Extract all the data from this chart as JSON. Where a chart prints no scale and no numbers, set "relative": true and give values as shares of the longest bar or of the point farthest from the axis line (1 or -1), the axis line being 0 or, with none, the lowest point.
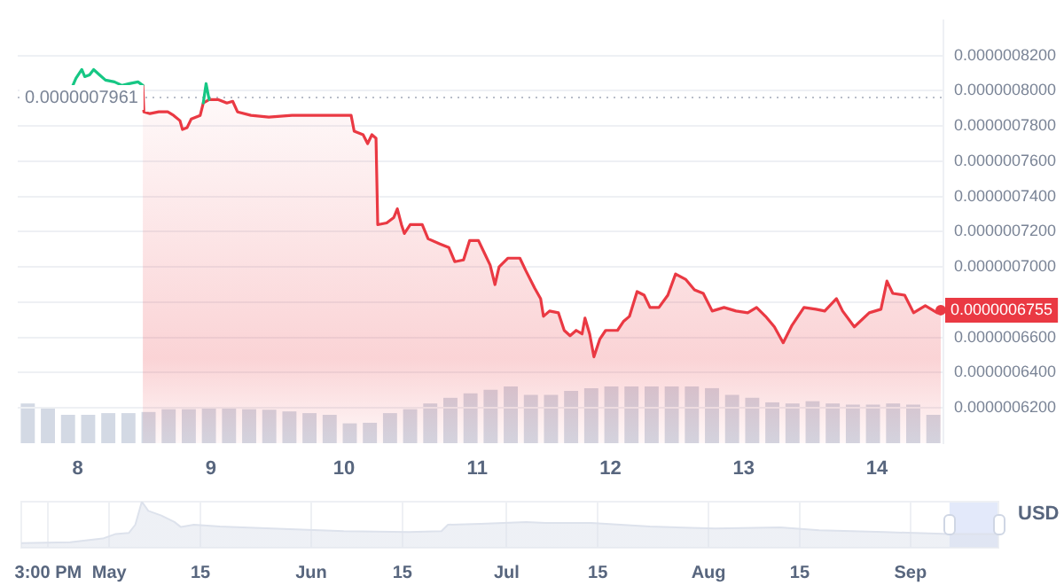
{
  "chart_data": [
    {
      "type": "line",
      "ylabel": "USD",
      "grid": "y",
      "marker": "none",
      "xlim": [
        7.55,
        14.5
      ],
      "xticks": [
        8,
        9,
        10,
        11,
        12,
        13,
        14
      ],
      "ylim": [
        6e-07,
        8.4e-07
      ],
      "yticks": [
        {
          "value": 8.2e-07,
          "label": "0.0000008200"
        },
        {
          "value": 8e-07,
          "label": "0.0000008000"
        },
        {
          "value": 7.8e-07,
          "label": "0.0000007800"
        },
        {
          "value": 7.6e-07,
          "label": "0.0000007600"
        },
        {
          "value": 7.4e-07,
          "label": "0.0000007400"
        },
        {
          "value": 7.2e-07,
          "label": "0.0000007200"
        },
        {
          "value": 7e-07,
          "label": "0.0000007000"
        },
        {
          "value": 6.8e-07,
          "label": null
        },
        {
          "value": 6.6e-07,
          "label": "0.0000006600"
        },
        {
          "value": 6.4e-07,
          "label": "0.0000006400"
        },
        {
          "value": 6.2e-07,
          "label": "0.0000006200"
        }
      ],
      "ref_lines": [
        {
          "axis": "y",
          "value": 7.961e-07,
          "label": "0.0000007961",
          "line_style": "dotted",
          "color": "#b8bec9"
        }
      ],
      "annotations": [
        {
          "text": "0.0000006755",
          "x": 14.48,
          "y": 6.755e-07
        }
      ],
      "series": [
        {
          "color": "#16c784",
          "x": [
            7.964,
            7.987,
            8.031,
            8.053,
            8.089,
            8.12,
            8.164,
            8.209,
            8.276,
            8.333,
            8.387,
            8.453,
            8.489,
            8.7,
            8.943,
            8.964,
            8.987
          ],
          "values": [
            8.03e-07,
            8.07e-07,
            8.12e-07,
            8.08e-07,
            8.09e-07,
            8.12e-07,
            8.09e-07,
            8.06e-07,
            8.05e-07,
            8.03e-07,
            8.04e-07,
            8.05e-07,
            8.03e-07,
            null,
            7.93e-07,
            8.04e-07,
            7.95e-07
          ]
        },
        {
          "type": "area",
          "color": "#ea3943",
          "x": [
            8.489,
            8.497,
            8.543,
            8.609,
            8.676,
            8.72,
            8.768,
            8.787,
            8.821,
            8.853,
            8.92,
            8.943,
            8.987,
            9.053,
            9.12,
            9.164,
            9.2,
            9.301,
            9.435,
            9.609,
            9.787,
            10.053,
            10.076,
            10.143,
            10.177,
            10.209,
            10.24,
            10.253,
            10.32,
            10.373,
            10.4,
            10.431,
            10.453,
            10.497,
            10.587,
            10.631,
            10.72,
            10.787,
            10.831,
            10.897,
            10.943,
            11.009,
            11.053,
            11.097,
            11.133,
            11.164,
            11.231,
            11.32,
            11.364,
            11.431,
            11.476,
            11.497,
            11.543,
            11.609,
            11.653,
            11.697,
            11.743,
            11.787,
            11.809,
            11.844,
            11.876,
            11.92,
            11.964,
            12.053,
            12.097,
            12.143,
            12.2,
            12.253,
            12.297,
            12.364,
            12.431,
            12.489,
            12.564,
            12.631,
            12.697,
            12.764,
            12.853,
            12.943,
            13.031,
            13.097,
            13.164,
            13.231,
            13.297,
            13.364,
            13.453,
            13.543,
            13.609,
            13.697,
            13.743,
            13.831,
            13.943,
            14.031,
            14.076,
            14.12,
            14.209,
            14.276,
            14.364,
            14.453,
            14.48
          ],
          "values": [
            8.03e-07,
            7.88e-07,
            7.87e-07,
            7.88e-07,
            7.88e-07,
            7.86e-07,
            7.83e-07,
            7.78e-07,
            7.79e-07,
            7.84e-07,
            7.86e-07,
            7.93e-07,
            7.95e-07,
            7.95e-07,
            7.93e-07,
            7.94e-07,
            7.88e-07,
            7.86e-07,
            7.85e-07,
            7.86e-07,
            7.86e-07,
            7.86e-07,
            7.77e-07,
            7.75e-07,
            7.7e-07,
            7.75e-07,
            7.73e-07,
            7.24e-07,
            7.25e-07,
            7.28e-07,
            7.33e-07,
            7.24e-07,
            7.19e-07,
            7.24e-07,
            7.24e-07,
            7.16e-07,
            7.13e-07,
            7.11e-07,
            7.03e-07,
            7.04e-07,
            7.15e-07,
            7.15e-07,
            7.08e-07,
            7.01e-07,
            6.9e-07,
            7e-07,
            7.05e-07,
            7.05e-07,
            6.98e-07,
            6.88e-07,
            6.82e-07,
            6.72e-07,
            6.75e-07,
            6.74e-07,
            6.64e-07,
            6.61e-07,
            6.64e-07,
            6.62e-07,
            6.71e-07,
            6.62e-07,
            6.49e-07,
            6.59e-07,
            6.64e-07,
            6.64e-07,
            6.69e-07,
            6.72e-07,
            6.86e-07,
            6.84e-07,
            6.77e-07,
            6.77e-07,
            6.84e-07,
            6.96e-07,
            6.93e-07,
            6.87e-07,
            6.85e-07,
            6.75e-07,
            6.77e-07,
            6.75e-07,
            6.74e-07,
            6.77e-07,
            6.72e-07,
            6.66e-07,
            6.57e-07,
            6.67e-07,
            6.77e-07,
            6.76e-07,
            6.75e-07,
            6.82e-07,
            6.75e-07,
            6.66e-07,
            6.74e-07,
            6.76e-07,
            6.92e-07,
            6.85e-07,
            6.84e-07,
            6.74e-07,
            6.78e-07,
            6.74e-07,
            6.755e-07
          ]
        }
      ]
    },
    {
      "type": "bar",
      "relative": true,
      "tick_labels": false,
      "color": "#d3d9e4",
      "categories": [
        null,
        null,
        null,
        null,
        null,
        null,
        null,
        null,
        null,
        null,
        null,
        null,
        null,
        null,
        null,
        null,
        null,
        null,
        null,
        null,
        null,
        null,
        null,
        null,
        null,
        null,
        null,
        null,
        null,
        null,
        null,
        null,
        null,
        null,
        null,
        null,
        null,
        null,
        null,
        null,
        null,
        null,
        null,
        null,
        null,
        null
      ],
      "values": [
        0.7,
        0.64,
        0.5,
        0.5,
        0.53,
        0.53,
        0.55,
        0.6,
        0.6,
        0.62,
        0.62,
        0.6,
        0.59,
        0.56,
        0.53,
        0.5,
        0.35,
        0.36,
        0.53,
        0.6,
        0.7,
        0.8,
        0.88,
        0.94,
        1,
        0.85,
        0.85,
        0.92,
        0.97,
        1,
        1,
        1,
        1,
        1,
        0.97,
        0.85,
        0.8,
        0.72,
        0.7,
        0.74,
        0.7,
        0.68,
        0.68,
        0.7,
        0.68,
        0.5
      ]
    },
    {
      "type": "area",
      "relative": true,
      "tick_labels": "x",
      "grid": "x",
      "color": "#dde2ec",
      "xlim": [
        "--04-17T12:00",
        "--09-14T12:00"
      ],
      "xticks": [
        {
          "value": "--04-21T15:00",
          "label": "3:00 PM"
        },
        {
          "value": "--05-01",
          "label": "May"
        },
        {
          "value": "--05-15",
          "label": "15"
        },
        {
          "value": "--06-01",
          "label": "Jun"
        },
        {
          "value": "--06-15",
          "label": "15"
        },
        {
          "value": "--07-01",
          "label": "Jul"
        },
        {
          "value": "--07-15",
          "label": "15"
        },
        {
          "value": "--08-01",
          "label": "Aug"
        },
        {
          "value": "--08-15",
          "label": "15"
        },
        {
          "value": "--09-01",
          "label": "Sep"
        }
      ],
      "bands": [
        {
          "axis": "x",
          "from": "--09-07",
          "to": "--09-14T12:00",
          "color": "#e3e9fa"
        }
      ],
      "x": [
        "--04-17T12:00",
        "--04-25",
        "--04-30",
        "--05-02",
        "--05-04",
        "--05-05",
        "--05-06",
        "--05-07",
        "--05-09",
        "--05-11",
        "--05-12",
        "--05-14",
        "--05-18",
        "--05-26",
        "--06-06",
        "--06-16",
        "--06-21",
        "--06-22",
        "--06-27",
        "--07-04",
        "--07-07",
        "--07-14",
        "--07-23",
        "--08-02",
        "--08-12",
        "--08-18",
        "--08-28",
        "--09-07",
        "--09-14T12:00"
      ],
      "values": [
        0.1,
        0.12,
        0.2,
        0.3,
        0.32,
        0.5,
        1,
        0.8,
        0.7,
        0.56,
        0.45,
        0.5,
        0.46,
        0.42,
        0.36,
        0.34,
        0.36,
        0.5,
        0.52,
        0.56,
        0.54,
        0.54,
        0.46,
        0.42,
        0.44,
        0.38,
        0.34,
        0.3,
        0.3
      ]
    }
  ]
}
